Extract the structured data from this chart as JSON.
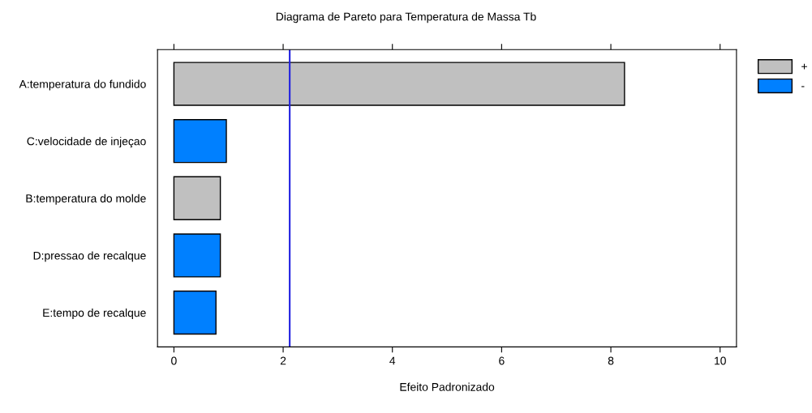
{
  "chart_data": {
    "type": "bar",
    "orientation": "horizontal",
    "title": "Diagrama de Pareto para Temperatura de Massa Tb",
    "xlabel": "Efeito Padronizado",
    "categories": [
      "A:temperatura do fundido",
      "C:velocidade de injeçao",
      "B:temperatura do molde",
      "D:pressao de recalque",
      "E:tempo de recalque"
    ],
    "series": [
      {
        "name": "+",
        "color": "#c0c0c0",
        "values": [
          8.25,
          null,
          0.85,
          null,
          null
        ]
      },
      {
        "name": "-",
        "color": "#0080ff",
        "values": [
          null,
          0.96,
          null,
          0.85,
          0.77
        ]
      }
    ],
    "xlim": [
      -0.3,
      10.3
    ],
    "xticks": [
      0,
      2,
      4,
      6,
      8,
      10
    ],
    "ref_lines": [
      {
        "axis": "x",
        "value": 2.12,
        "color": "#2020e0"
      }
    ],
    "grid": false,
    "legend": "top right"
  }
}
